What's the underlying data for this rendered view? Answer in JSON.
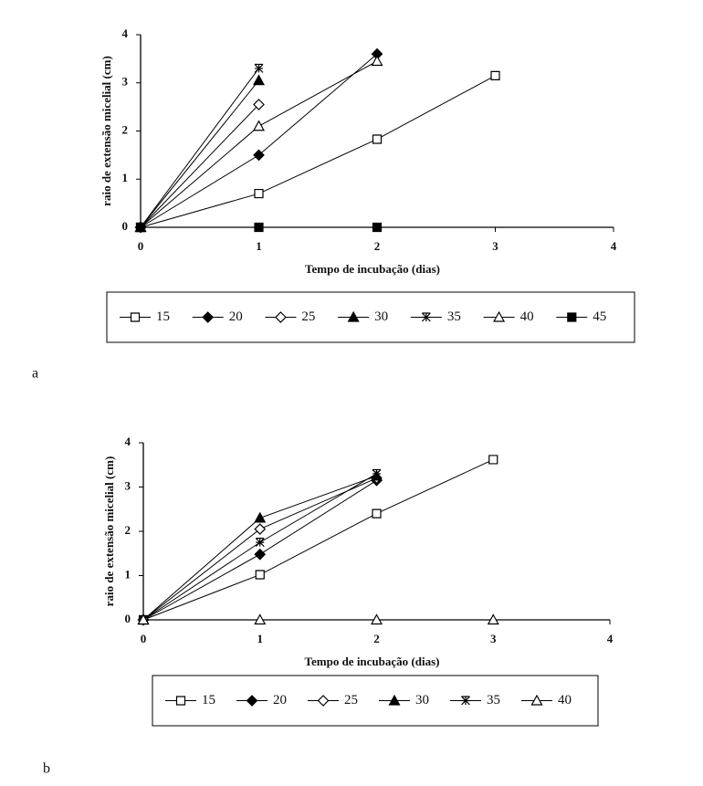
{
  "chart_data": [
    {
      "type": "line",
      "panel_label": "a",
      "x_label": "Tempo de incubação (dias)",
      "y_label": "raio de extensão micelial (cm)",
      "xlim": [
        0,
        4
      ],
      "xticks": [
        0,
        1,
        2,
        3,
        4
      ],
      "ylim": [
        0,
        4
      ],
      "yticks": [
        0,
        1,
        2,
        3,
        4
      ],
      "x": [
        0,
        1,
        2,
        3
      ],
      "series": [
        {
          "name": "15",
          "color": "#000000",
          "marker": "square-open",
          "values": [
            0,
            0.7,
            1.83,
            3.15
          ]
        },
        {
          "name": "20",
          "color": "#000000",
          "marker": "diamond-filled",
          "values": [
            0,
            1.5,
            3.6,
            null
          ]
        },
        {
          "name": "25",
          "color": "#000000",
          "marker": "diamond-open",
          "values": [
            0,
            2.55,
            null,
            null
          ]
        },
        {
          "name": "30",
          "color": "#000000",
          "marker": "triangle-filled",
          "values": [
            0,
            3.05,
            null,
            null
          ]
        },
        {
          "name": "35",
          "color": "#000000",
          "marker": "star",
          "values": [
            0,
            3.3,
            null,
            null
          ]
        },
        {
          "name": "40",
          "color": "#000000",
          "marker": "triangle-open",
          "values": [
            0,
            2.1,
            3.45,
            null
          ]
        },
        {
          "name": "45",
          "color": "#000000",
          "marker": "square-filled",
          "values": [
            0,
            0,
            0,
            null
          ]
        }
      ]
    },
    {
      "type": "line",
      "panel_label": "b",
      "x_label": "Tempo de incubação (dias)",
      "y_label": "raio de extensão micelial (cm)",
      "xlim": [
        0,
        4
      ],
      "xticks": [
        0,
        1,
        2,
        3,
        4
      ],
      "ylim": [
        0,
        4
      ],
      "yticks": [
        0,
        1,
        2,
        3,
        4
      ],
      "x": [
        0,
        1,
        2,
        3
      ],
      "series": [
        {
          "name": "15",
          "color": "#000000",
          "marker": "square-open",
          "values": [
            0,
            1.02,
            2.4,
            3.62
          ]
        },
        {
          "name": "20",
          "color": "#000000",
          "marker": "diamond-filled",
          "values": [
            0,
            1.48,
            3.15,
            null
          ]
        },
        {
          "name": "25",
          "color": "#000000",
          "marker": "diamond-open",
          "values": [
            0,
            2.05,
            3.2,
            null
          ]
        },
        {
          "name": "30",
          "color": "#000000",
          "marker": "triangle-filled",
          "values": [
            0,
            2.3,
            3.25,
            null
          ]
        },
        {
          "name": "35",
          "color": "#000000",
          "marker": "star",
          "values": [
            0,
            1.75,
            3.3,
            null
          ]
        },
        {
          "name": "40",
          "color": "#000000",
          "marker": "triangle-open",
          "values": [
            0,
            0,
            0,
            0
          ]
        }
      ]
    }
  ]
}
